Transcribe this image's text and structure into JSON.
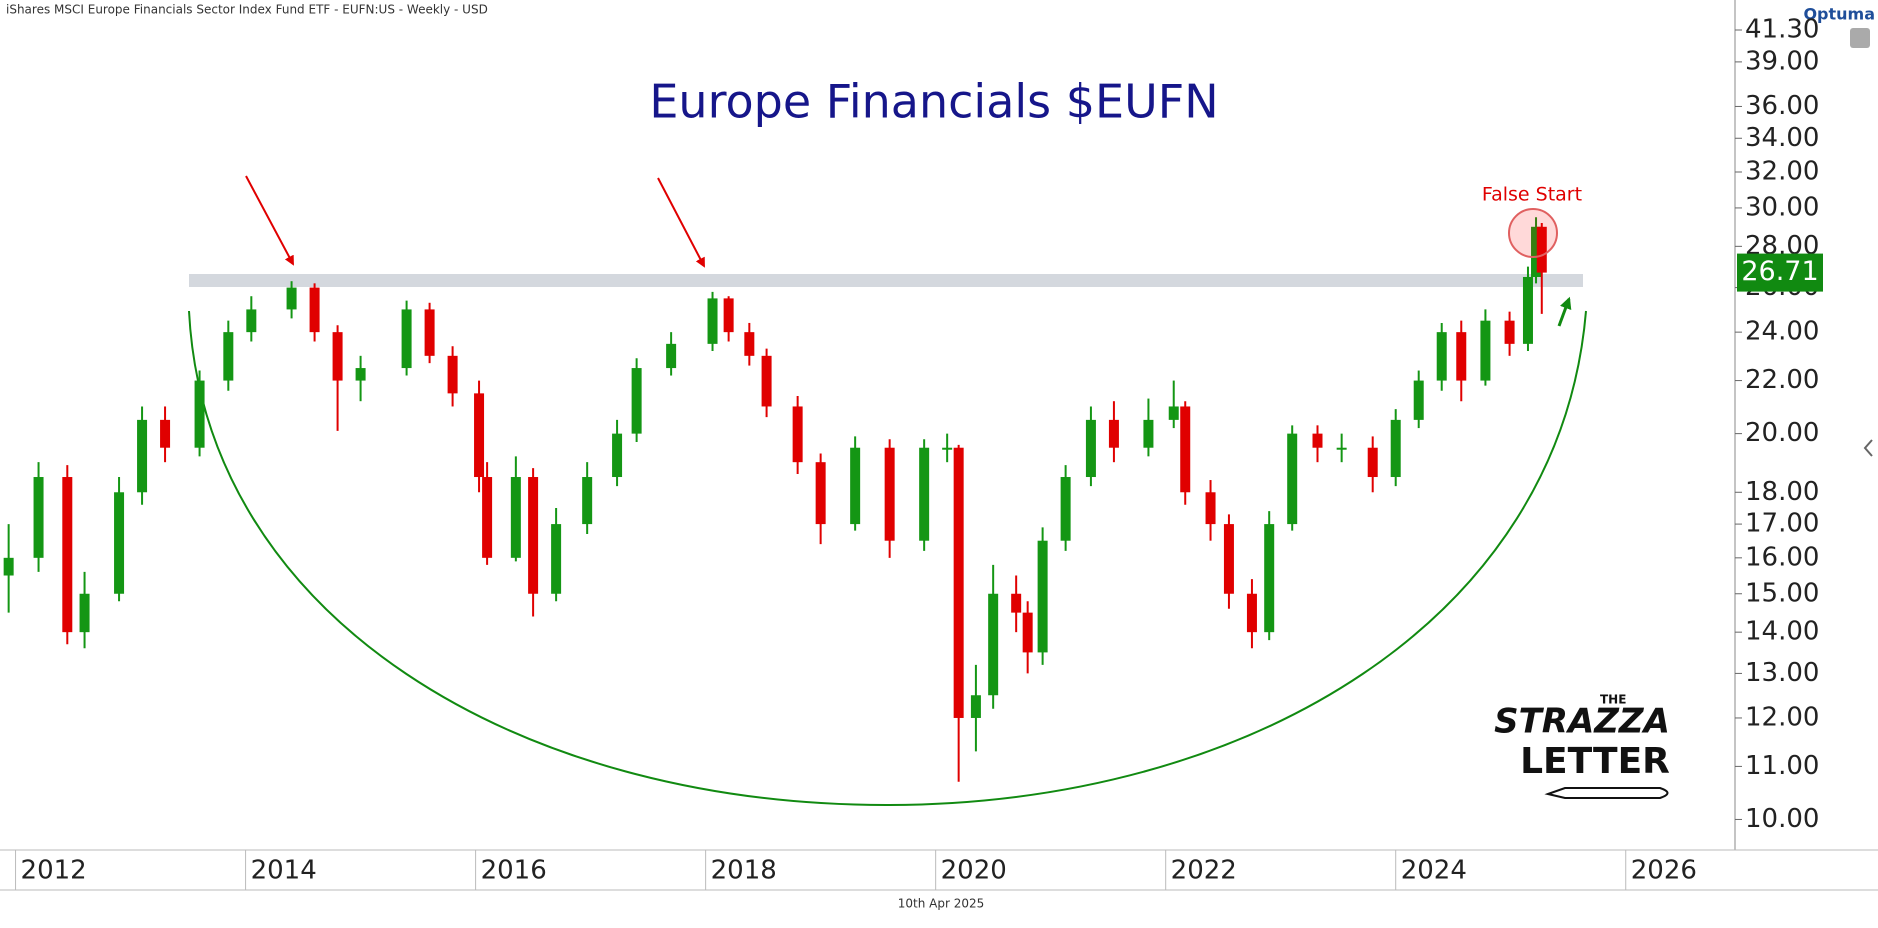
{
  "header": "iShares MSCI Europe Financials Sector Index Fund ETF - EUFN:US - Weekly - USD",
  "brand": "Optuma",
  "footer": "10th Apr 2025",
  "logo": {
    "the": "THE",
    "name": "STRAZZA",
    "sub": "LETTER"
  },
  "chart_data": {
    "type": "candlestick",
    "title": "Europe Financials $EUFN",
    "annotation": "False Start",
    "x": [
      2011.94,
      2012.2,
      2012.45,
      2012.6,
      2012.9,
      2013.1,
      2013.3,
      2013.6,
      2013.85,
      2014.05,
      2014.4,
      2014.6,
      2014.8,
      2015.0,
      2015.4,
      2015.6,
      2015.8,
      2016.03,
      2016.1,
      2016.35,
      2016.5,
      2016.7,
      2016.97,
      2017.23,
      2017.4,
      2017.7,
      2018.06,
      2018.2,
      2018.38,
      2018.53,
      2018.8,
      2019.0,
      2019.3,
      2019.6,
      2019.9,
      2020.1,
      2020.2,
      2020.35,
      2020.5,
      2020.7,
      2020.8,
      2020.93,
      2021.13,
      2021.35,
      2021.55,
      2021.85,
      2022.07,
      2022.17,
      2022.39,
      2022.55,
      2022.75,
      2022.9,
      2023.1,
      2023.32,
      2023.53,
      2023.8,
      2024.0,
      2024.2,
      2024.4,
      2024.57,
      2024.78,
      2024.99,
      2025.15,
      2025.22,
      2025.27
    ],
    "open": [
      15.5,
      16,
      18.5,
      14,
      15,
      18,
      20.5,
      19.5,
      22,
      24,
      25,
      26,
      24,
      22,
      22.5,
      25,
      23,
      21.5,
      18.5,
      16,
      18.5,
      15,
      17,
      18.5,
      20,
      22.5,
      23.5,
      25.5,
      24,
      23,
      21,
      19,
      17,
      19.5,
      16.5,
      19.5,
      19.5,
      12,
      12.5,
      15,
      14.5,
      13.5,
      16.5,
      18.5,
      20.5,
      19.5,
      20.5,
      21,
      18,
      17,
      15,
      14,
      17,
      20,
      19.5,
      19.5,
      18.5,
      20.5,
      22,
      24,
      22,
      24.5,
      23.5,
      26.5,
      29
    ],
    "high": [
      17.0,
      19.0,
      18.9,
      15.6,
      18.5,
      21.0,
      21.0,
      22.4,
      24.5,
      25.6,
      26.3,
      26.2,
      24.3,
      23.0,
      25.4,
      25.3,
      23.4,
      22.0,
      19.0,
      19.2,
      18.8,
      17.5,
      19.0,
      20.5,
      22.9,
      24.0,
      25.8,
      25.6,
      24.4,
      23.3,
      21.4,
      19.3,
      19.9,
      19.8,
      19.8,
      20.0,
      19.6,
      13.2,
      15.8,
      15.5,
      14.8,
      16.9,
      18.9,
      21.0,
      21.2,
      21.3,
      22.0,
      21.2,
      18.4,
      17.3,
      15.4,
      17.4,
      20.3,
      20.3,
      20.0,
      19.9,
      20.9,
      22.4,
      24.4,
      24.5,
      25.0,
      24.9,
      27.0,
      29.5,
      29.2
    ],
    "low": [
      14.5,
      15.6,
      13.7,
      13.6,
      14.8,
      17.6,
      19.0,
      19.2,
      21.6,
      23.6,
      24.6,
      23.6,
      20.1,
      21.2,
      22.2,
      22.7,
      21.0,
      18.0,
      15.8,
      15.9,
      14.4,
      14.8,
      16.7,
      18.2,
      19.7,
      22.2,
      23.2,
      23.6,
      22.6,
      20.6,
      18.6,
      16.4,
      16.8,
      16.0,
      16.2,
      19.0,
      10.7,
      11.3,
      12.2,
      14.0,
      13.0,
      13.2,
      16.2,
      18.2,
      19.0,
      19.2,
      20.2,
      17.6,
      16.5,
      14.6,
      13.6,
      13.8,
      16.8,
      19.0,
      19.0,
      18.0,
      18.2,
      20.2,
      21.6,
      21.2,
      21.8,
      23.0,
      23.2,
      26.2,
      24.8
    ],
    "close": [
      16,
      18.5,
      14,
      15,
      18,
      20.5,
      19.5,
      22,
      24,
      25,
      26,
      24,
      22,
      22.5,
      25,
      23,
      21.5,
      18.5,
      16,
      18.5,
      15,
      17,
      18.5,
      20,
      22.5,
      23.5,
      25.5,
      24,
      23,
      21,
      19,
      17,
      19.5,
      16.5,
      19.5,
      19.5,
      12,
      12.5,
      15,
      14.5,
      13.5,
      16.5,
      18.5,
      20.5,
      19.5,
      20.5,
      21,
      18,
      17,
      15,
      14,
      17,
      20,
      19.5,
      19.5,
      18.5,
      20.5,
      22,
      24,
      22,
      24.5,
      23.5,
      26.5,
      29,
      26.71
    ],
    "up_color": "#149614",
    "down_color": "#e00000",
    "last_color": "#118a11",
    "log_y": true,
    "xlim": [
      2011.917,
      2026.95
    ],
    "ylim": [
      9.5,
      42.2
    ],
    "xticks": [
      2012,
      2014,
      2016,
      2018,
      2020,
      2022,
      2024,
      2026
    ],
    "yticks": [
      {
        "value": 10,
        "label": "10.00"
      },
      {
        "value": 11,
        "label": "11.00"
      },
      {
        "value": 12,
        "label": "12.00"
      },
      {
        "value": 13,
        "label": "13.00"
      },
      {
        "value": 14,
        "label": "14.00"
      },
      {
        "value": 15,
        "label": "15.00"
      },
      {
        "value": 16,
        "label": "16.00"
      },
      {
        "value": 17,
        "label": "17.00"
      },
      {
        "value": 18,
        "label": "18.00"
      },
      {
        "value": 20,
        "label": "20.00"
      },
      {
        "value": 22,
        "label": "22.00"
      },
      {
        "value": 24,
        "label": "24.00"
      },
      {
        "value": 26,
        "label": "26.00"
      },
      {
        "value": 28,
        "label": "28.00"
      },
      {
        "value": 30,
        "label": "30.00"
      },
      {
        "value": 32,
        "label": "32.00"
      },
      {
        "value": 34,
        "label": "34.00"
      },
      {
        "value": 36,
        "label": "36.00"
      },
      {
        "value": 39,
        "label": "39.00"
      },
      {
        "value": 41.3,
        "label": "41.30"
      }
    ]
  }
}
